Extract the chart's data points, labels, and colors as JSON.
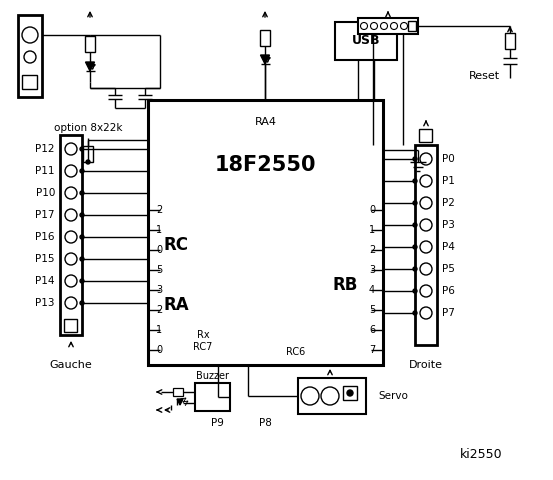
{
  "bg_color": "#ffffff",
  "title": "ki2550",
  "chip_label": "18F2550",
  "chip_ra4": "RA4",
  "rc_label": "RC",
  "ra_label": "RA",
  "rb_label": "RB",
  "rc_left_nums": [
    "2",
    "1",
    "0",
    "5",
    "3",
    "2",
    "1",
    "0"
  ],
  "rb_right_nums": [
    "0",
    "1",
    "2",
    "3",
    "4",
    "5",
    "6",
    "7"
  ],
  "left_labels": [
    "P12",
    "P11",
    "P10",
    "P17",
    "P16",
    "P15",
    "P14",
    "P13"
  ],
  "right_labels": [
    "P0",
    "P1",
    "P2",
    "P3",
    "P4",
    "P5",
    "P6",
    "P7"
  ],
  "usb_label": "USB",
  "reset_label": "Reset",
  "gauche_label": "Gauche",
  "droite_label": "Droite",
  "buzzer_label": "Buzzer",
  "p9_label": "P9",
  "p8_label": "P8",
  "servo_label": "Servo",
  "option_label": "option 8x22k",
  "rx_label": "Rx",
  "rc7_label": "RC7",
  "rc6_label": "RC6"
}
